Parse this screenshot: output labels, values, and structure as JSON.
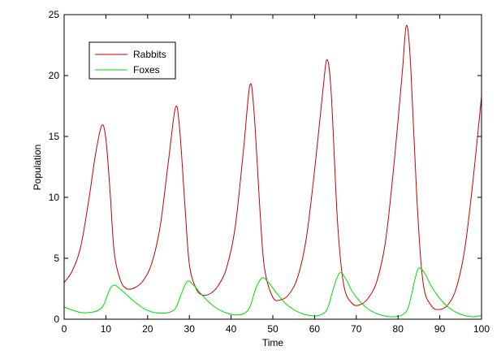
{
  "chart_data": {
    "type": "line",
    "title": "",
    "xlabel": "Time",
    "ylabel": "Population",
    "xlim": [
      0,
      100
    ],
    "ylim": [
      0,
      25
    ],
    "xticks": [
      0,
      10,
      20,
      30,
      40,
      50,
      60,
      70,
      80,
      90,
      100
    ],
    "yticks": [
      0,
      5,
      10,
      15,
      20,
      25
    ],
    "grid": false,
    "legend_position": "top-left",
    "series": [
      {
        "name": "Rabbits",
        "color": "#cc0000",
        "points": [
          [
            0,
            3.0
          ],
          [
            2,
            4.0
          ],
          [
            4,
            6.0
          ],
          [
            6,
            10.0
          ],
          [
            7.5,
            13.5
          ],
          [
            9,
            15.9
          ],
          [
            10,
            14.8
          ],
          [
            11,
            10.5
          ],
          [
            12,
            5.5
          ],
          [
            13.5,
            3.2
          ],
          [
            15,
            2.5
          ],
          [
            17,
            2.6
          ],
          [
            19,
            3.2
          ],
          [
            21,
            4.6
          ],
          [
            23,
            7.6
          ],
          [
            25,
            13.0
          ],
          [
            26.7,
            17.4
          ],
          [
            27.7,
            15.5
          ],
          [
            29,
            9.0
          ],
          [
            30,
            4.5
          ],
          [
            31.5,
            2.6
          ],
          [
            33,
            2.0
          ],
          [
            35,
            2.1
          ],
          [
            37,
            2.8
          ],
          [
            39,
            4.3
          ],
          [
            41,
            7.6
          ],
          [
            43,
            14.0
          ],
          [
            44.5,
            19.2
          ],
          [
            45.5,
            17.0
          ],
          [
            47,
            8.5
          ],
          [
            48,
            4.2
          ],
          [
            50,
            1.8
          ],
          [
            52,
            1.6
          ],
          [
            54,
            2.1
          ],
          [
            56,
            3.5
          ],
          [
            58,
            6.6
          ],
          [
            60,
            12.2
          ],
          [
            62,
            18.8
          ],
          [
            63,
            21.3
          ],
          [
            64,
            18.5
          ],
          [
            65.5,
            8.0
          ],
          [
            67,
            2.8
          ],
          [
            69,
            1.3
          ],
          [
            71,
            1.2
          ],
          [
            73,
            1.8
          ],
          [
            75,
            3.2
          ],
          [
            77,
            6.4
          ],
          [
            79,
            12.6
          ],
          [
            81,
            20.2
          ],
          [
            82,
            24.1
          ],
          [
            83,
            21.0
          ],
          [
            84.5,
            10.0
          ],
          [
            86,
            3.0
          ],
          [
            88,
            1.1
          ],
          [
            90,
            0.8
          ],
          [
            92,
            1.2
          ],
          [
            94,
            2.6
          ],
          [
            96,
            5.8
          ],
          [
            98,
            11.5
          ],
          [
            100,
            18.3
          ]
        ]
      },
      {
        "name": "Foxes",
        "color": "#00dd00",
        "points": [
          [
            0,
            1.0
          ],
          [
            2,
            0.75
          ],
          [
            4,
            0.55
          ],
          [
            6,
            0.55
          ],
          [
            8,
            0.7
          ],
          [
            9.5,
            1.2
          ],
          [
            11,
            2.5
          ],
          [
            12,
            2.8
          ],
          [
            13,
            2.6
          ],
          [
            15,
            2.0
          ],
          [
            17,
            1.4
          ],
          [
            19,
            0.9
          ],
          [
            21,
            0.6
          ],
          [
            23,
            0.5
          ],
          [
            25,
            0.55
          ],
          [
            26.7,
            0.9
          ],
          [
            28,
            2.0
          ],
          [
            29.5,
            3.1
          ],
          [
            31,
            2.8
          ],
          [
            33,
            2.0
          ],
          [
            35,
            1.3
          ],
          [
            37,
            0.8
          ],
          [
            39,
            0.5
          ],
          [
            41,
            0.35
          ],
          [
            43,
            0.45
          ],
          [
            44.5,
            1.0
          ],
          [
            46,
            2.6
          ],
          [
            47.5,
            3.4
          ],
          [
            49,
            3.0
          ],
          [
            51,
            2.1
          ],
          [
            53,
            1.3
          ],
          [
            55,
            0.8
          ],
          [
            57,
            0.45
          ],
          [
            59,
            0.3
          ],
          [
            61,
            0.3
          ],
          [
            63,
            0.8
          ],
          [
            64.5,
            2.5
          ],
          [
            66,
            3.8
          ],
          [
            67.5,
            3.3
          ],
          [
            69,
            2.3
          ],
          [
            71,
            1.4
          ],
          [
            73,
            0.8
          ],
          [
            75,
            0.45
          ],
          [
            77,
            0.25
          ],
          [
            79,
            0.2
          ],
          [
            81,
            0.35
          ],
          [
            82.5,
            1.0
          ],
          [
            84,
            3.2
          ],
          [
            85,
            4.2
          ],
          [
            86.5,
            3.7
          ],
          [
            88,
            2.7
          ],
          [
            90,
            1.7
          ],
          [
            92,
            1.0
          ],
          [
            94,
            0.55
          ],
          [
            96,
            0.3
          ],
          [
            98,
            0.2
          ],
          [
            100,
            0.3
          ]
        ]
      }
    ]
  }
}
